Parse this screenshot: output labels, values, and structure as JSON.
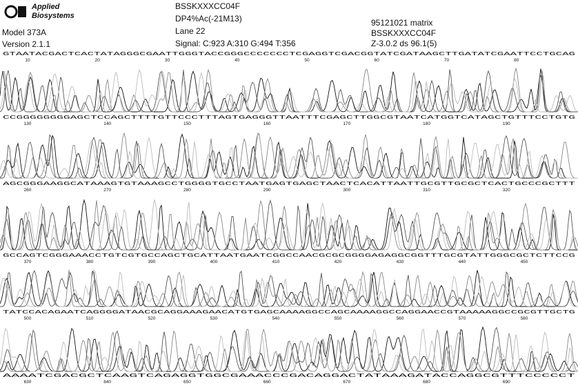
{
  "header": {
    "logo": [
      "Applied",
      "Biosystems"
    ],
    "model": "Model 373A",
    "version": "Version 2.1.1",
    "sample": "BSSKXXXCC04F",
    "primer": "DP4%Ac(-21M13)",
    "lane": "Lane 22",
    "signal": "Signal: C:923 A:310 G:494 T:356",
    "matrix": "95121021 matrix",
    "sample_file": "BSSKXXXCC04F",
    "software": "Z-3.0.2 ds 96.1(5)"
  },
  "rows": [
    {
      "sequence": "GTAATACGACTCACTATAGGGCGAATTGGGTACCGGGCCCCCCCTCGAGGTCGACGGTATCGATAAGCTTGATATCGAATTCCTGCAG",
      "positions": [
        10,
        20,
        30,
        40,
        50,
        60,
        70,
        80
      ]
    },
    {
      "sequence": "CCGGGGGGGGAGCTCCAGCTTTTGTTCCCTTTAGTGAGGGTTAATTTCGAGCTTGGCGTAATCATGGTCATAGCTGTTTCCTGTG",
      "positions": [
        130,
        140,
        150,
        160,
        170,
        180,
        190
      ]
    },
    {
      "sequence": "AGCGGGAAGGCATAAAGTGTAAAGCCTGGGGTGCCTAATGAGTGAGCTAACTCACATTAATTGCGTTGCGCTCACTGCCCGCTTT",
      "positions": [
        260,
        270,
        280,
        290,
        300,
        310,
        320
      ]
    },
    {
      "sequence": "GCCAGTCGGGAAACCTGTCGTGCCAGCTGCATTAATGAATCGGCCAACGCGCGGGGAGAGGCGGTTTGCGTATTGGGCGCTCTTCCG",
      "positions": [
        370,
        380,
        390,
        400,
        410,
        420,
        430,
        440,
        450
      ]
    },
    {
      "sequence": "TATCCACAGAATCAGGGGATAACGCAGGAAAGAACATGTGAGCAAAAGGCCAGCAAAAGGCCAGGAACCGTAAAAAGGCCGCGTTGCTG",
      "positions": [
        500,
        510,
        520,
        530,
        540,
        550,
        560,
        570,
        580
      ]
    },
    {
      "sequence": "AAAATCGACGCTCAAGTCAGAGGTGGCGAAACCCGACAGGACTATAAAGATACCAGGCGTTTCCCCCT",
      "positions": [
        630,
        640,
        650,
        660,
        670,
        680,
        690
      ]
    }
  ]
}
